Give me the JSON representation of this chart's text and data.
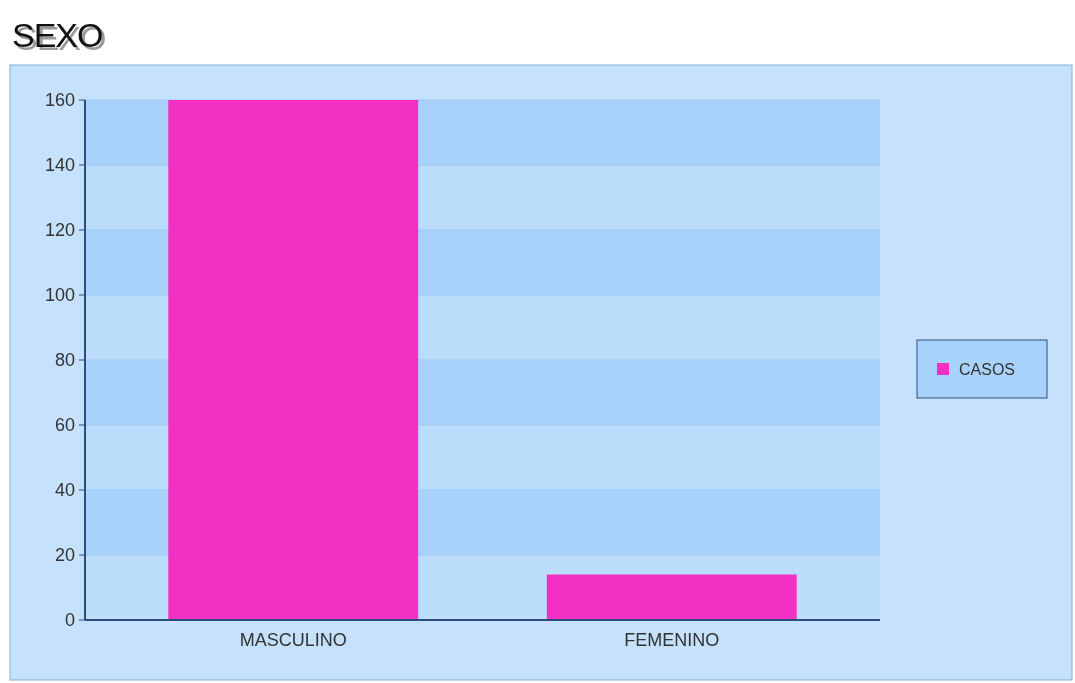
{
  "chart_data": {
    "type": "bar",
    "title": "SEXO",
    "categories": [
      "MASCULINO",
      "FEMENINO"
    ],
    "series": [
      {
        "name": "CASOS",
        "color": "#f230c4",
        "values": [
          160,
          14
        ]
      }
    ],
    "ylim": [
      0,
      160
    ],
    "yticks": [
      0,
      20,
      40,
      60,
      80,
      100,
      120,
      140,
      160
    ],
    "grid": "y",
    "legend": "right"
  }
}
